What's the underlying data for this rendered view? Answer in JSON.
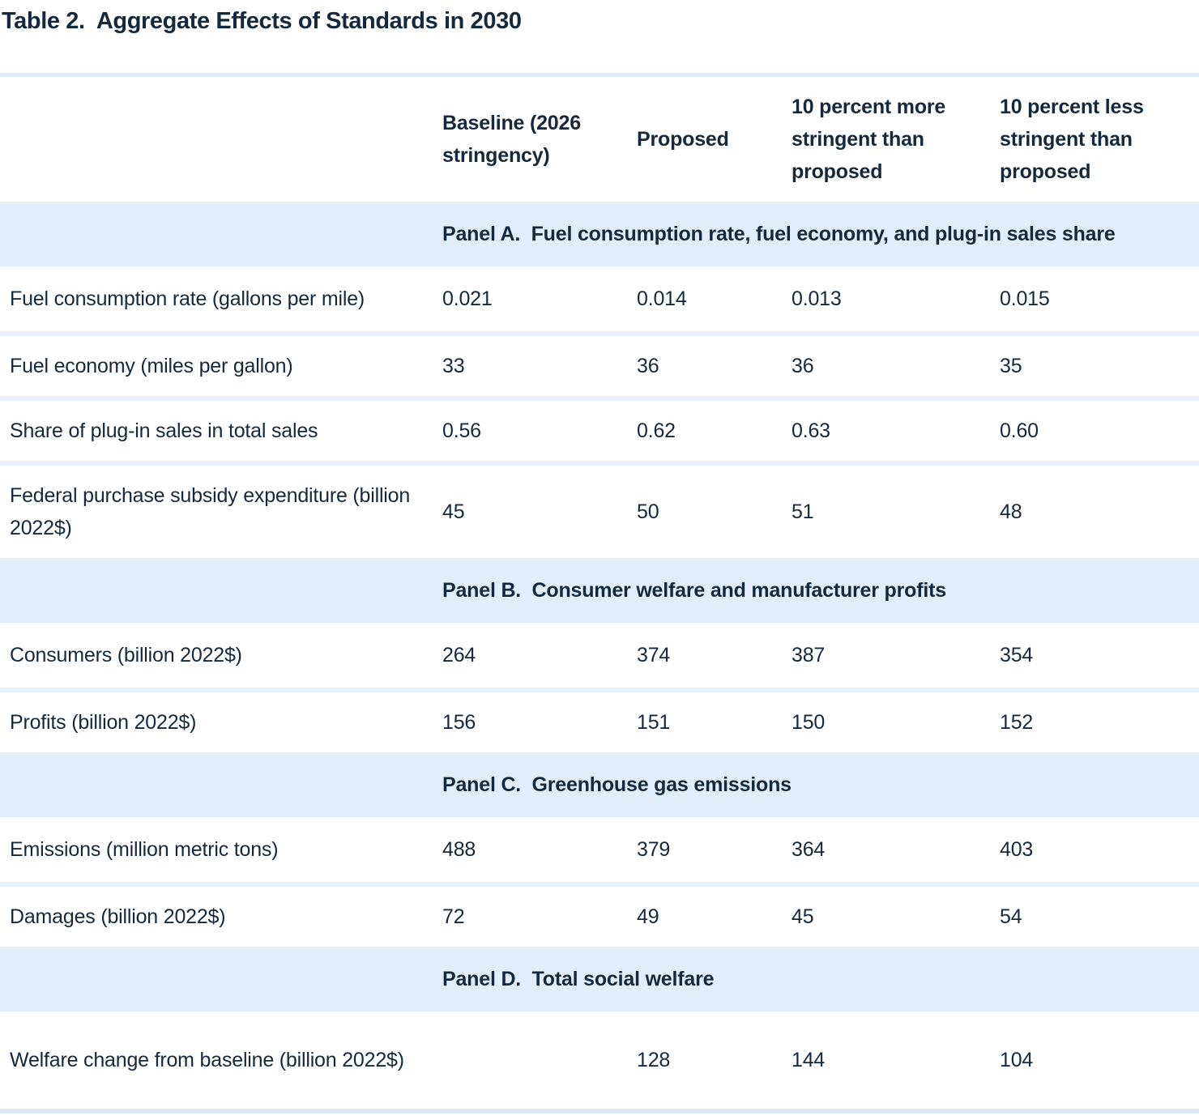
{
  "title": "Table 2.  Aggregate Effects of Standards in 2030",
  "colors": {
    "text": "#14293e",
    "panel_band_bg": "#e1edfb",
    "table_border": "#dcebfa",
    "row_separator": "#e9f2fc",
    "page_bg": "#ffffff"
  },
  "table": {
    "column_headers": [
      "Baseline (2026 stringency)",
      "Proposed",
      "10 percent more stringent than proposed",
      "10 percent less stringent than proposed"
    ],
    "panels": [
      {
        "header": "Panel A.  Fuel consumption rate, fuel economy, and plug-in sales share",
        "rows": [
          {
            "label": "Fuel consumption rate (gallons per mile)",
            "values": [
              "0.021",
              "0.014",
              "0.013",
              "0.015"
            ]
          },
          {
            "label": "Fuel economy (miles per gallon)",
            "values": [
              "33",
              "36",
              "36",
              "35"
            ]
          },
          {
            "label": "Share of plug-in sales in total sales",
            "values": [
              "0.56",
              "0.62",
              "0.63",
              "0.60"
            ]
          },
          {
            "label": "Federal purchase subsidy expenditure (billion 2022$)",
            "values": [
              "45",
              "50",
              "51",
              "48"
            ]
          }
        ]
      },
      {
        "header": "Panel B.  Consumer welfare and manufacturer profits",
        "rows": [
          {
            "label": "Consumers (billion 2022$)",
            "values": [
              "264",
              "374",
              "387",
              "354"
            ]
          },
          {
            "label": "Profits (billion 2022$)",
            "values": [
              "156",
              "151",
              "150",
              "152"
            ]
          }
        ]
      },
      {
        "header": "Panel C.  Greenhouse gas emissions",
        "rows": [
          {
            "label": "Emissions (million metric tons)",
            "values": [
              "488",
              "379",
              "364",
              "403"
            ]
          },
          {
            "label": "Damages (billion 2022$)",
            "values": [
              "72",
              "49",
              "45",
              "54"
            ]
          }
        ]
      },
      {
        "header": "Panel D.  Total social welfare",
        "rows": [
          {
            "label": "Welfare change from baseline (billion 2022$)",
            "values": [
              "",
              "128",
              "144",
              "104"
            ]
          }
        ]
      }
    ]
  }
}
